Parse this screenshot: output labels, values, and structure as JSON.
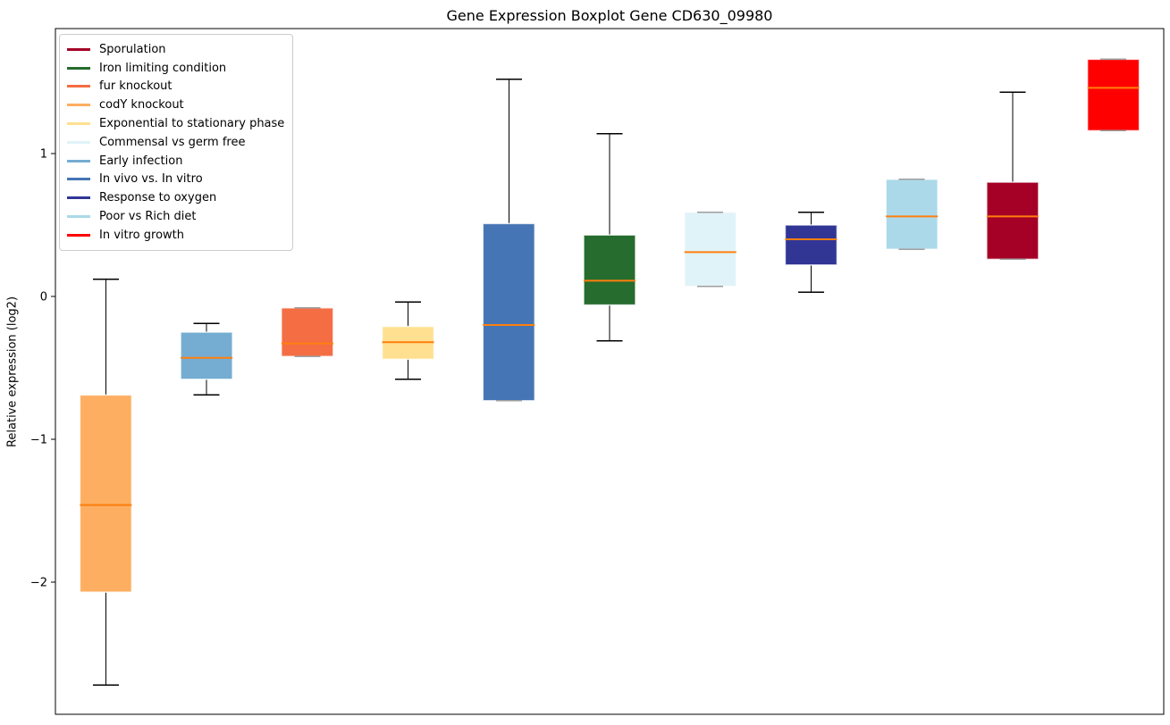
{
  "chart_data": {
    "type": "boxplot",
    "title": "Gene Expression Boxplot Gene CD630_09980",
    "xlabel": "",
    "ylabel": "Relative expression (log2)",
    "ylim": [
      -2.925,
      1.875
    ],
    "yticks": [
      {
        "value": 1,
        "label": "1"
      },
      {
        "value": 0,
        "label": "0"
      },
      {
        "value": -1,
        "label": "−1"
      },
      {
        "value": -2,
        "label": "−2"
      }
    ],
    "grid": false,
    "x_tick_labels_shown": false,
    "legend_position": "upper left",
    "median_color": "#ff7f0e",
    "whisker_color": "#000000",
    "series": [
      {
        "name": "codY knockout",
        "color": "#fdae61",
        "whisker_low": -2.72,
        "q1": -2.07,
        "median": -1.46,
        "q3": -0.69,
        "whisker_high": 0.12
      },
      {
        "name": "Early infection",
        "color": "#74add1",
        "whisker_low": -0.69,
        "q1": -0.58,
        "median": -0.43,
        "q3": -0.25,
        "whisker_high": -0.19
      },
      {
        "name": "fur knockout",
        "color": "#f46d43",
        "whisker_low": -0.42,
        "q1": -0.42,
        "median": -0.33,
        "q3": -0.08,
        "whisker_high": -0.08
      },
      {
        "name": "Exponential to stationary phase",
        "color": "#fee090",
        "whisker_low": -0.58,
        "q1": -0.44,
        "median": -0.32,
        "q3": -0.21,
        "whisker_high": -0.04
      },
      {
        "name": "In vivo vs. In vitro",
        "color": "#4575b4",
        "whisker_low": -0.73,
        "q1": -0.73,
        "median": -0.2,
        "q3": 0.51,
        "whisker_high": 1.52
      },
      {
        "name": "Iron limiting condition",
        "color": "#256c2e",
        "whisker_low": -0.31,
        "q1": -0.06,
        "median": 0.11,
        "q3": 0.43,
        "whisker_high": 1.14
      },
      {
        "name": "Commensal vs germ free",
        "color": "#e0f3f8",
        "whisker_low": 0.07,
        "q1": 0.07,
        "median": 0.31,
        "q3": 0.59,
        "whisker_high": 0.59
      },
      {
        "name": "Response to oxygen",
        "color": "#313695",
        "whisker_low": 0.03,
        "q1": 0.22,
        "median": 0.4,
        "q3": 0.5,
        "whisker_high": 0.59
      },
      {
        "name": "Poor vs Rich diet",
        "color": "#abd9e9",
        "whisker_low": 0.33,
        "q1": 0.33,
        "median": 0.56,
        "q3": 0.82,
        "whisker_high": 0.82
      },
      {
        "name": "Sporulation",
        "color": "#a50026",
        "whisker_low": 0.26,
        "q1": 0.26,
        "median": 0.56,
        "q3": 0.8,
        "whisker_high": 1.43
      },
      {
        "name": "In vitro growth",
        "color": "#ff0000",
        "whisker_low": 1.16,
        "q1": 1.16,
        "median": 1.46,
        "q3": 1.66,
        "whisker_high": 1.66
      }
    ],
    "legend_order": [
      "Sporulation",
      "Iron limiting condition",
      "fur knockout",
      "codY knockout",
      "Exponential to stationary phase",
      "Commensal vs germ free",
      "Early infection",
      "In vivo vs. In vitro",
      "Response to oxygen",
      "Poor vs Rich diet",
      "In vitro growth"
    ]
  }
}
